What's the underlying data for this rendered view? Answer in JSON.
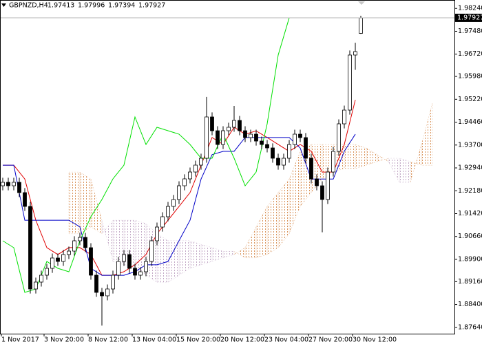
{
  "chart_data": {
    "type": "candlestick",
    "title": "GBPNZD,H4",
    "open": [
      1.92346,
      1.92461,
      1.92346,
      1.92461,
      1.92118,
      1.9166,
      1.88916,
      1.89145,
      1.89374,
      1.89602,
      1.89945,
      1.89831,
      1.9006,
      1.90174,
      1.90517,
      1.90631,
      1.90288,
      1.89374,
      1.88802,
      1.88688,
      1.88916,
      1.89374,
      1.89831,
      1.9006,
      1.89602,
      1.89374,
      1.89488,
      1.89831,
      1.90517,
      1.90974,
      1.91317,
      1.9166,
      1.91889,
      1.92346,
      1.92575,
      1.92803,
      1.93032,
      1.93261,
      1.94633,
      1.94175,
      1.93718,
      1.94175,
      1.9429,
      1.94518,
      1.94175,
      1.93947,
      1.94061,
      1.93832,
      1.93718,
      1.93604,
      1.93261,
      1.93032,
      1.93261,
      1.93718,
      1.94061,
      1.93947,
      1.93261,
      1.92575,
      1.92346,
      1.91889,
      1.92803,
      1.93489,
      1.94404,
      1.94861,
      1.96691,
      1.97413
    ],
    "high": [
      1.92611,
      1.92611,
      1.92611,
      1.92611,
      1.92268,
      1.9181,
      1.89295,
      1.89524,
      1.89752,
      1.90095,
      1.90095,
      1.9021,
      1.90324,
      1.90667,
      1.90781,
      1.90781,
      1.90438,
      1.89524,
      1.88952,
      1.89066,
      1.89524,
      1.89981,
      1.9021,
      1.9021,
      1.89752,
      1.89638,
      1.89981,
      1.90667,
      1.91124,
      1.91467,
      1.9181,
      1.92039,
      1.92496,
      1.92725,
      1.92953,
      1.93182,
      1.93411,
      1.953,
      1.94783,
      1.94325,
      1.94325,
      1.9444,
      1.95,
      1.94668,
      1.94325,
      1.94211,
      1.94211,
      1.93982,
      1.93868,
      1.93754,
      1.93411,
      1.93411,
      1.93868,
      1.94211,
      1.94211,
      1.94097,
      1.93411,
      1.92725,
      1.92496,
      1.92953,
      1.93639,
      1.94554,
      1.95011,
      1.96841,
      1.971,
      1.97996
    ],
    "low": [
      1.92196,
      1.92196,
      1.92196,
      1.91968,
      1.9151,
      1.88766,
      1.88766,
      1.88995,
      1.89224,
      1.89452,
      1.89681,
      1.89681,
      1.8991,
      1.90024,
      1.90367,
      1.90138,
      1.89224,
      1.88652,
      1.877,
      1.88538,
      1.88766,
      1.89224,
      1.89681,
      1.89452,
      1.89224,
      1.89224,
      1.89338,
      1.89681,
      1.90367,
      1.90824,
      1.91167,
      1.9151,
      1.91739,
      1.92196,
      1.92425,
      1.92653,
      1.92882,
      1.93111,
      1.94025,
      1.93568,
      1.93568,
      1.94025,
      1.9414,
      1.94025,
      1.93797,
      1.93797,
      1.93682,
      1.93568,
      1.93454,
      1.93111,
      1.92882,
      1.92882,
      1.93111,
      1.93568,
      1.93797,
      1.93111,
      1.92425,
      1.92196,
      1.908,
      1.91739,
      1.92653,
      1.93339,
      1.94254,
      1.94711,
      1.962,
      1.97394
    ],
    "close": [
      1.92461,
      1.92346,
      1.92461,
      1.92118,
      1.9166,
      1.88916,
      1.89145,
      1.89374,
      1.89602,
      1.89945,
      1.89831,
      1.9006,
      1.90174,
      1.90517,
      1.90631,
      1.90288,
      1.89374,
      1.88802,
      1.88688,
      1.88916,
      1.89374,
      1.89831,
      1.9006,
      1.89602,
      1.89374,
      1.89488,
      1.89831,
      1.90517,
      1.90974,
      1.91317,
      1.9166,
      1.91889,
      1.92346,
      1.92575,
      1.92803,
      1.93032,
      1.93261,
      1.94633,
      1.94175,
      1.93718,
      1.94175,
      1.9429,
      1.94518,
      1.94175,
      1.93947,
      1.94061,
      1.93832,
      1.93718,
      1.93604,
      1.93261,
      1.93032,
      1.93261,
      1.93718,
      1.94061,
      1.93947,
      1.93261,
      1.92575,
      1.92346,
      1.91889,
      1.92803,
      1.93489,
      1.94404,
      1.94861,
      1.96691,
      1.96805,
      1.97927
    ],
    "up_color": "#ffffff",
    "down_color": "#000000",
    "lines": [
      {
        "color": "#e00000",
        "x": [
          0,
          2,
          4,
          6,
          8,
          10,
          12,
          14,
          16,
          18,
          20,
          22,
          24,
          26,
          28,
          30,
          32,
          34,
          36,
          38,
          40,
          42,
          44,
          46,
          48,
          50,
          52,
          54,
          56,
          58,
          60,
          62,
          64
        ],
        "values": [
          1.9303,
          1.9303,
          1.9257,
          1.912,
          1.9029,
          1.9006,
          1.9029,
          1.9029,
          1.9006,
          1.8937,
          1.8937,
          1.8949,
          1.8972,
          1.9006,
          1.9075,
          1.912,
          1.9166,
          1.9212,
          1.9303,
          1.9395,
          1.9372,
          1.9429,
          1.9406,
          1.9417,
          1.9395,
          1.9372,
          1.9349,
          1.9372,
          1.9349,
          1.928,
          1.928,
          1.9372,
          1.952
        ]
      },
      {
        "color": "#0000c8",
        "x": [
          0,
          2,
          4,
          6,
          8,
          10,
          12,
          14,
          16,
          18,
          20,
          22,
          24,
          26,
          28,
          30,
          32,
          34,
          36,
          38,
          40,
          42,
          44,
          46,
          48,
          50,
          52,
          54,
          56,
          58,
          60,
          62,
          64
        ],
        "values": [
          1.9303,
          1.9303,
          1.912,
          1.912,
          1.912,
          1.912,
          1.912,
          1.9098,
          1.896,
          1.8937,
          1.8937,
          1.8937,
          1.8949,
          1.8972,
          1.8972,
          1.8983,
          1.9052,
          1.912,
          1.9257,
          1.9338,
          1.9349,
          1.9349,
          1.9395,
          1.9395,
          1.9395,
          1.9395,
          1.9395,
          1.936,
          1.9257,
          1.9257,
          1.9257,
          1.9349,
          1.9406
        ]
      },
      {
        "color": "#00e000",
        "x": [
          0,
          2,
          4,
          6,
          8,
          10,
          12,
          14,
          16,
          18,
          20,
          22,
          24,
          26,
          28,
          30,
          32,
          34,
          36,
          38,
          40,
          42,
          44,
          46,
          48,
          50,
          52
        ],
        "values": [
          1.90517,
          1.90288,
          1.88802,
          1.88916,
          1.89831,
          1.89602,
          1.89488,
          1.90517,
          1.91317,
          1.91889,
          1.92575,
          1.93032,
          1.94633,
          1.93718,
          1.9429,
          1.94175,
          1.94061,
          1.93718,
          1.93261,
          1.93261,
          1.94061,
          1.93261,
          1.92346,
          1.92803,
          1.94404,
          1.96691,
          1.97927
        ]
      }
    ],
    "cloud": {
      "x": [
        12,
        14,
        16,
        18,
        20,
        22,
        24,
        26,
        28,
        30,
        32,
        34,
        36,
        38,
        40,
        42,
        44,
        46,
        48,
        50,
        52,
        54,
        56,
        58,
        60,
        62,
        64,
        66,
        68,
        70,
        72,
        74,
        76,
        78
      ],
      "span_a": [
        1.928,
        1.928,
        1.9257,
        1.912,
        1.8983,
        1.8972,
        1.896,
        1.8937,
        1.8914,
        1.8914,
        1.8937,
        1.896,
        1.8972,
        1.8983,
        1.8995,
        1.9006,
        1.9029,
        1.9098,
        1.9166,
        1.9212,
        1.9257,
        1.9349,
        1.9372,
        1.9372,
        1.9372,
        1.9372,
        1.9372,
        1.936,
        1.9338,
        1.9315,
        1.9246,
        1.9246,
        1.9372,
        1.9509
      ],
      "span_b": [
        1.9075,
        1.9075,
        1.9098,
        1.9075,
        1.912,
        1.912,
        1.912,
        1.9109,
        1.9075,
        1.9052,
        1.9052,
        1.9052,
        1.904,
        1.9029,
        1.9017,
        1.9017,
        1.8995,
        1.8995,
        1.9006,
        1.9029,
        1.9075,
        1.9166,
        1.9212,
        1.9257,
        1.928,
        1.9292,
        1.9292,
        1.9303,
        1.9315,
        1.9326,
        1.9326,
        1.9315,
        1.9303,
        1.9303
      ],
      "up_color": "#d9935a",
      "down_color": "#c3a9c6"
    },
    "last_price_line": true,
    "xlim": [
      -0.5,
      82
    ],
    "ylim": [
      1.8743,
      1.9852
    ],
    "yticks": [
      {
        "value": 1.9824,
        "label": "1.98240"
      },
      {
        "value": 1.9748,
        "label": "1.97480"
      },
      {
        "value": 1.9672,
        "label": "1.96720"
      },
      {
        "value": 1.9598,
        "label": "1.95980"
      },
      {
        "value": 1.9522,
        "label": "1.95220"
      },
      {
        "value": 1.9446,
        "label": "1.94460"
      },
      {
        "value": 1.937,
        "label": "1.93700"
      },
      {
        "value": 1.9294,
        "label": "1.92940"
      },
      {
        "value": 1.9218,
        "label": "1.92180"
      },
      {
        "value": 1.9142,
        "label": "1.91420"
      },
      {
        "value": 1.9066,
        "label": "1.90660"
      },
      {
        "value": 1.899,
        "label": "1.89900"
      },
      {
        "value": 1.8916,
        "label": "1.89160"
      },
      {
        "value": 1.884,
        "label": "1.88400"
      },
      {
        "value": 1.8764,
        "label": "1.87640"
      }
    ],
    "xticks": [
      {
        "value": -0.25,
        "label": "1 Nov 2017"
      },
      {
        "value": 7.5,
        "label": "3 Nov 20:00"
      },
      {
        "value": 15.5,
        "label": "8 Nov 12:00"
      },
      {
        "value": 23.5,
        "label": "13 Nov 04:00"
      },
      {
        "value": 31.5,
        "label": "15 Nov 20:00"
      },
      {
        "value": 39.5,
        "label": "20 Nov 12:00"
      },
      {
        "value": 47.5,
        "label": "23 Nov 04:00"
      },
      {
        "value": 55.5,
        "label": "27 Nov 20:00"
      },
      {
        "value": 63.5,
        "label": "30 Nov 12:00"
      }
    ]
  }
}
